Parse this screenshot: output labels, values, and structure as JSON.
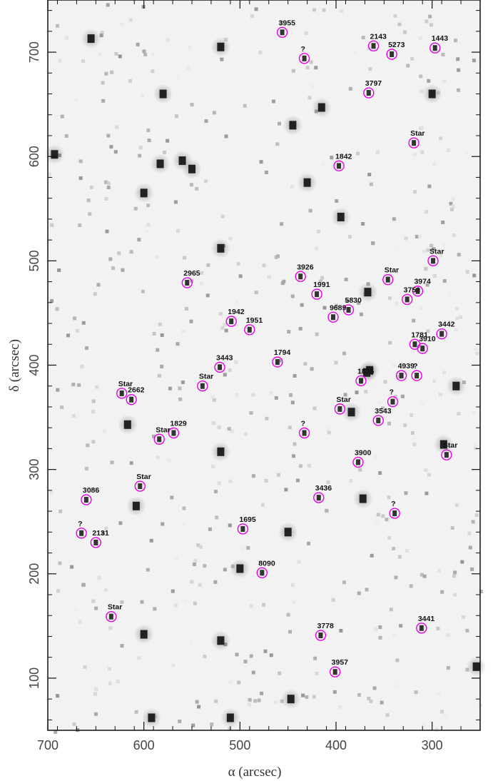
{
  "colors": {
    "marker": "#e600e6",
    "frame": "#111111",
    "text": "#222222",
    "field": "#f2f2f2"
  },
  "chart_data": {
    "type": "scatter",
    "title": "",
    "xlabel": "α (arcsec)",
    "ylabel": "δ (arcsec)",
    "xlim": [
      700,
      250
    ],
    "ylim": [
      50,
      750
    ],
    "x_reversed": true,
    "grid": false,
    "xticks": [
      700,
      600,
      500,
      400,
      300
    ],
    "yticks": [
      100,
      200,
      300,
      400,
      500,
      600,
      700
    ],
    "xtick_labels": [
      "700",
      "600",
      "500",
      "400",
      "300"
    ],
    "ytick_labels": [
      "100",
      "200",
      "300",
      "400",
      "500",
      "600",
      "700"
    ],
    "marker_style": "magenta circle",
    "points": [
      {
        "x": 456,
        "y": 719,
        "label": "3955"
      },
      {
        "x": 361,
        "y": 706,
        "label": "2143"
      },
      {
        "x": 297,
        "y": 704,
        "label": "1443"
      },
      {
        "x": 342,
        "y": 698,
        "label": "5273"
      },
      {
        "x": 433,
        "y": 694,
        "label": "?"
      },
      {
        "x": 366,
        "y": 661,
        "label": "3797"
      },
      {
        "x": 319,
        "y": 613,
        "label": "Star"
      },
      {
        "x": 397,
        "y": 591,
        "label": "1842"
      },
      {
        "x": 299,
        "y": 500,
        "label": "Star"
      },
      {
        "x": 437,
        "y": 485,
        "label": "3926"
      },
      {
        "x": 346,
        "y": 482,
        "label": "Star"
      },
      {
        "x": 555,
        "y": 479,
        "label": "2965"
      },
      {
        "x": 315,
        "y": 471,
        "label": "3974"
      },
      {
        "x": 420,
        "y": 468,
        "label": "1991"
      },
      {
        "x": 326,
        "y": 463,
        "label": "3759"
      },
      {
        "x": 387,
        "y": 453,
        "label": "5830"
      },
      {
        "x": 403,
        "y": 446,
        "label": "9689"
      },
      {
        "x": 509,
        "y": 442,
        "label": "1942"
      },
      {
        "x": 290,
        "y": 430,
        "label": "3442"
      },
      {
        "x": 490,
        "y": 434,
        "label": "1951"
      },
      {
        "x": 318,
        "y": 420,
        "label": "1781"
      },
      {
        "x": 310,
        "y": 416,
        "label": "3910"
      },
      {
        "x": 461,
        "y": 403,
        "label": "1794"
      },
      {
        "x": 521,
        "y": 398,
        "label": "3443"
      },
      {
        "x": 332,
        "y": 390,
        "label": "4939"
      },
      {
        "x": 316,
        "y": 390,
        "label": "?"
      },
      {
        "x": 374,
        "y": 385,
        "label": "1835"
      },
      {
        "x": 539,
        "y": 380,
        "label": "Star"
      },
      {
        "x": 623,
        "y": 373,
        "label": "Star"
      },
      {
        "x": 613,
        "y": 367,
        "label": "2662"
      },
      {
        "x": 341,
        "y": 365,
        "label": "?"
      },
      {
        "x": 396,
        "y": 358,
        "label": "Star"
      },
      {
        "x": 356,
        "y": 347,
        "label": "3543"
      },
      {
        "x": 433,
        "y": 335,
        "label": "?"
      },
      {
        "x": 569,
        "y": 335,
        "label": "1829"
      },
      {
        "x": 584,
        "y": 329,
        "label": "Star"
      },
      {
        "x": 285,
        "y": 314,
        "label": "Star"
      },
      {
        "x": 377,
        "y": 307,
        "label": "3900"
      },
      {
        "x": 604,
        "y": 284,
        "label": "Star"
      },
      {
        "x": 418,
        "y": 273,
        "label": "3436"
      },
      {
        "x": 660,
        "y": 271,
        "label": "3086"
      },
      {
        "x": 339,
        "y": 258,
        "label": "?"
      },
      {
        "x": 497,
        "y": 243,
        "label": "1695"
      },
      {
        "x": 665,
        "y": 239,
        "label": "?"
      },
      {
        "x": 650,
        "y": 230,
        "label": "2131"
      },
      {
        "x": 477,
        "y": 201,
        "label": "8090"
      },
      {
        "x": 634,
        "y": 159,
        "label": "Star"
      },
      {
        "x": 311,
        "y": 148,
        "label": "3441"
      },
      {
        "x": 416,
        "y": 141,
        "label": "3778"
      },
      {
        "x": 401,
        "y": 106,
        "label": "3957"
      }
    ],
    "background_sources": [
      {
        "x": 655,
        "y": 713
      },
      {
        "x": 580,
        "y": 660
      },
      {
        "x": 445,
        "y": 630
      },
      {
        "x": 583,
        "y": 593
      },
      {
        "x": 550,
        "y": 588
      },
      {
        "x": 560,
        "y": 596
      },
      {
        "x": 520,
        "y": 512
      },
      {
        "x": 365,
        "y": 395
      },
      {
        "x": 368,
        "y": 393
      },
      {
        "x": 372,
        "y": 272
      },
      {
        "x": 520,
        "y": 317
      },
      {
        "x": 617,
        "y": 343
      },
      {
        "x": 288,
        "y": 324
      },
      {
        "x": 600,
        "y": 142
      },
      {
        "x": 520,
        "y": 136
      },
      {
        "x": 254,
        "y": 111
      },
      {
        "x": 450,
        "y": 240
      },
      {
        "x": 693,
        "y": 602
      },
      {
        "x": 608,
        "y": 265
      },
      {
        "x": 275,
        "y": 380
      },
      {
        "x": 430,
        "y": 575
      },
      {
        "x": 500,
        "y": 205
      },
      {
        "x": 300,
        "y": 660
      },
      {
        "x": 415,
        "y": 647
      },
      {
        "x": 510,
        "y": 62
      },
      {
        "x": 592,
        "y": 62
      },
      {
        "x": 447,
        "y": 80
      },
      {
        "x": 367,
        "y": 470
      },
      {
        "x": 384,
        "y": 355
      },
      {
        "x": 600,
        "y": 565
      },
      {
        "x": 395,
        "y": 542
      },
      {
        "x": 520,
        "y": 705
      }
    ]
  }
}
